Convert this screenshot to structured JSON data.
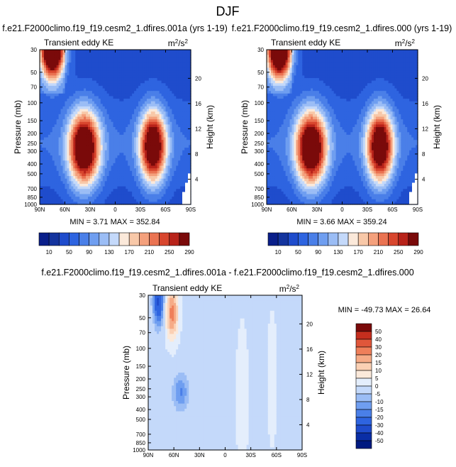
{
  "figure_title": "DJF",
  "colors": {
    "diverging": [
      "#001a80",
      "#0a2ea6",
      "#1f4ccc",
      "#2e64e0",
      "#4a7fe8",
      "#6f9ef0",
      "#9bbdf5",
      "#c4d9fa",
      "#e4eefc",
      "#fbe9da",
      "#fbd0b4",
      "#f6ab87",
      "#ef7f5a",
      "#e0563a",
      "#c52e1e",
      "#a41413",
      "#7a0a0a"
    ]
  },
  "chart_data": [
    {
      "type": "heatmap",
      "panel": "top-left",
      "title": "f.e21.F2000climo.f19_f19.cesm2_1.dfires.001a (yrs 1-19)",
      "subtitle": "Transient eddy KE",
      "units": [
        "m",
        "2",
        "/s",
        "2"
      ],
      "ylabel": "Pressure (mb)",
      "ylabel_right": "Height (km)",
      "x_ticks": [
        "90N",
        "60N",
        "30N",
        "0",
        "30S",
        "60S",
        "90S"
      ],
      "y_ticks": [
        "30",
        "50",
        "70",
        "100",
        "150",
        "200",
        "250",
        "300",
        "400",
        "500",
        "700",
        "850",
        "1000"
      ],
      "right_ticks": [
        "20",
        "16",
        "12",
        "8",
        "4"
      ],
      "xlim": [
        90,
        -90
      ],
      "ylim": [
        1000,
        30
      ],
      "y_scale": "log",
      "stats": {
        "min_label": "MIN =",
        "min": "3.71",
        "max_label": "MAX =",
        "max": "352.84"
      },
      "colorbar": {
        "orientation": "horizontal",
        "labels": [
          "10",
          "50",
          "90",
          "130",
          "170",
          "210",
          "250",
          "290"
        ]
      },
      "features": [
        {
          "lat": 75,
          "p": 30,
          "value": 340,
          "sigma_lat": 10,
          "sigma_logp": 0.2
        },
        {
          "lat": 37,
          "p": 280,
          "value": 290,
          "sigma_lat": 13,
          "sigma_logp": 0.26
        },
        {
          "lat": -45,
          "p": 270,
          "value": 280,
          "sigma_lat": 11,
          "sigma_logp": 0.25
        }
      ]
    },
    {
      "type": "heatmap",
      "panel": "top-right",
      "title": "f.e21.F2000climo.f19_f19.cesm2_1.dfires.000 (yrs 1-19)",
      "subtitle": "Transient eddy KE",
      "units": [
        "m",
        "2",
        "/s",
        "2"
      ],
      "ylabel": "Pressure (mb)",
      "ylabel_right": "Height (km)",
      "x_ticks": [
        "90N",
        "60N",
        "30N",
        "0",
        "30S",
        "60S",
        "90S"
      ],
      "y_ticks": [
        "30",
        "50",
        "70",
        "100",
        "150",
        "200",
        "250",
        "300",
        "400",
        "500",
        "700",
        "850",
        "1000"
      ],
      "right_ticks": [
        "20",
        "16",
        "12",
        "8",
        "4"
      ],
      "xlim": [
        90,
        -90
      ],
      "ylim": [
        1000,
        30
      ],
      "y_scale": "log",
      "stats": {
        "min_label": "MIN =",
        "min": "3.66",
        "max_label": "MAX =",
        "max": "359.24"
      },
      "colorbar": {
        "orientation": "horizontal",
        "labels": [
          "10",
          "50",
          "90",
          "130",
          "170",
          "210",
          "250",
          "290"
        ]
      },
      "features": [
        {
          "lat": 75,
          "p": 30,
          "value": 350,
          "sigma_lat": 10,
          "sigma_logp": 0.2
        },
        {
          "lat": 37,
          "p": 280,
          "value": 290,
          "sigma_lat": 13,
          "sigma_logp": 0.26
        },
        {
          "lat": -45,
          "p": 270,
          "value": 280,
          "sigma_lat": 11,
          "sigma_logp": 0.25
        }
      ]
    },
    {
      "type": "heatmap",
      "panel": "bottom",
      "title": "f.e21.F2000climo.f19_f19.cesm2_1.dfires.001a - f.e21.F2000climo.f19_f19.cesm2_1.dfires.000",
      "subtitle": "Transient eddy KE",
      "units": [
        "m",
        "2",
        "/s",
        "2"
      ],
      "ylabel": "Pressure (mb)",
      "ylabel_right": "Height (km)",
      "x_ticks": [
        "90N",
        "60N",
        "30N",
        "0",
        "30S",
        "60S",
        "90S"
      ],
      "y_ticks": [
        "30",
        "50",
        "70",
        "100",
        "150",
        "200",
        "250",
        "300",
        "400",
        "500",
        "700",
        "850",
        "1000"
      ],
      "right_ticks": [
        "20",
        "16",
        "12",
        "8",
        "4"
      ],
      "xlim": [
        90,
        -90
      ],
      "ylim": [
        1000,
        30
      ],
      "y_scale": "log",
      "stats": {
        "min_label": "MIN =",
        "min": "-49.73",
        "max_label": "MAX =",
        "max": "26.64"
      },
      "colorbar": {
        "orientation": "vertical",
        "labels": [
          "50",
          "40",
          "30",
          "20",
          "15",
          "10",
          "5",
          "0",
          "-5",
          "-10",
          "-15",
          "-20",
          "-30",
          "-40",
          "-50"
        ]
      },
      "features": [
        {
          "lat": 62,
          "p": 45,
          "value": 24,
          "sigma_lat": 5,
          "sigma_logp": 0.18
        },
        {
          "lat": 78,
          "p": 35,
          "value": -30,
          "sigma_lat": 4,
          "sigma_logp": 0.15
        },
        {
          "lat": 52,
          "p": 270,
          "value": -14,
          "sigma_lat": 6,
          "sigma_logp": 0.12
        },
        {
          "lat": -20,
          "p": 300,
          "value": 5,
          "sigma_lat": 5,
          "sigma_logp": 0.5
        },
        {
          "lat": -55,
          "p": 200,
          "value": 5,
          "sigma_lat": 4,
          "sigma_logp": 0.45
        }
      ]
    }
  ]
}
